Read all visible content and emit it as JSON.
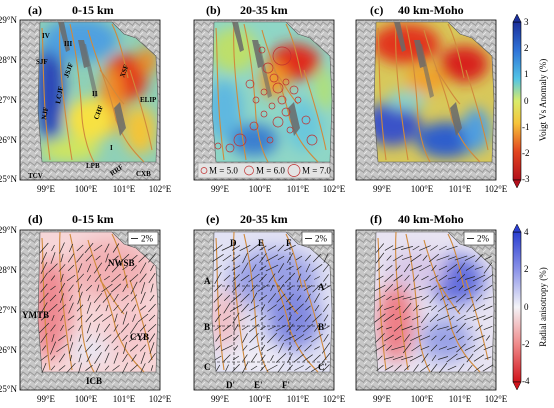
{
  "panels": [
    {
      "id": "a",
      "letter": "(a)",
      "title": "0-15 km",
      "quantity": "vs"
    },
    {
      "id": "b",
      "letter": "(b)",
      "title": "20-35 km",
      "quantity": "vs"
    },
    {
      "id": "c",
      "letter": "(c)",
      "title": "40 km-Moho",
      "quantity": "vs"
    },
    {
      "id": "d",
      "letter": "(d)",
      "title": "0-15 km",
      "quantity": "aniso"
    },
    {
      "id": "e",
      "letter": "(e)",
      "title": "20-35 km",
      "quantity": "aniso"
    },
    {
      "id": "f",
      "letter": "(f)",
      "title": "40 km-Moho",
      "quantity": "aniso"
    }
  ],
  "lat_ticks": [
    "25°N",
    "26°N",
    "27°N",
    "28°N",
    "29°N"
  ],
  "lon_ticks": [
    "99°E",
    "100°E",
    "101°E",
    "102°E"
  ],
  "scale_label": "2%",
  "fault_labels_a": [
    "IV",
    "III",
    "SJF",
    "JSJF",
    "XSF",
    "LCJF",
    "NJF",
    "II",
    "CHF",
    "I",
    "ELIP",
    "TCV",
    "LPB",
    "RRF",
    "CXB"
  ],
  "block_labels_d": [
    "NWSB",
    "YMTB",
    "CYB",
    "ICB"
  ],
  "profile_labels_e": [
    "D",
    "E",
    "F",
    "A",
    "A'",
    "B",
    "B'",
    "C",
    "C'",
    "D'",
    "E'",
    "F'"
  ],
  "magnitude_legend": [
    "M = 5.0",
    "M = 6.0",
    "M = 7.0"
  ],
  "colorbar_top": {
    "title": "Voigt Vs Anomaly (%)",
    "ticks": [
      "3",
      "2",
      "1",
      "0",
      "-1",
      "-2",
      "-3"
    ],
    "range": [
      -3,
      3
    ]
  },
  "colorbar_bottom": {
    "title": "Radial anisotropy (%)",
    "ticks": [
      "4",
      "2",
      "0",
      "-2",
      "-4"
    ],
    "range": [
      -4,
      4
    ]
  },
  "colors": {
    "red": "#c0141c",
    "blue": "#1b2f9a",
    "fault": "#d08a3c"
  }
}
